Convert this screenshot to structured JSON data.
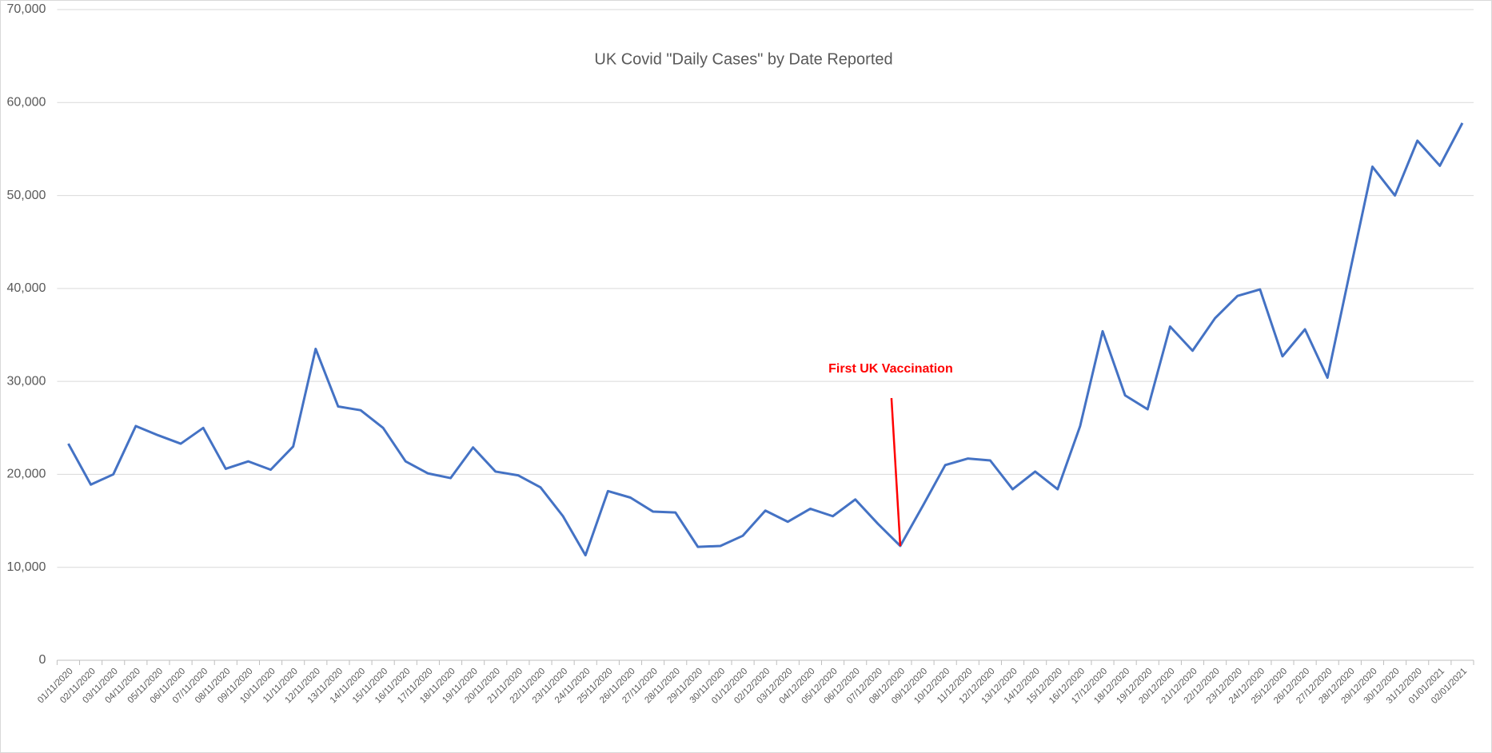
{
  "chart_data": {
    "type": "line",
    "title": "UK Covid \"Daily Cases\" by Date Reported",
    "categories": [
      "01/11/2020",
      "02/11/2020",
      "03/11/2020",
      "04/11/2020",
      "05/11/2020",
      "06/11/2020",
      "07/11/2020",
      "08/11/2020",
      "09/11/2020",
      "10/11/2020",
      "11/11/2020",
      "12/11/2020",
      "13/11/2020",
      "14/11/2020",
      "15/11/2020",
      "16/11/2020",
      "17/11/2020",
      "18/11/2020",
      "19/11/2020",
      "20/11/2020",
      "21/11/2020",
      "22/11/2020",
      "23/11/2020",
      "24/11/2020",
      "25/11/2020",
      "26/11/2020",
      "27/11/2020",
      "28/11/2020",
      "29/11/2020",
      "30/11/2020",
      "01/12/2020",
      "02/12/2020",
      "03/12/2020",
      "04/12/2020",
      "05/12/2020",
      "06/12/2020",
      "07/12/2020",
      "08/12/2020",
      "09/12/2020",
      "10/12/2020",
      "11/12/2020",
      "12/12/2020",
      "13/12/2020",
      "14/12/2020",
      "15/12/2020",
      "16/12/2020",
      "17/12/2020",
      "18/12/2020",
      "19/12/2020",
      "20/12/2020",
      "21/12/2020",
      "22/12/2020",
      "23/12/2020",
      "24/12/2020",
      "25/12/2020",
      "26/12/2020",
      "27/12/2020",
      "28/12/2020",
      "29/12/2020",
      "30/12/2020",
      "31/12/2020",
      "01/01/2021",
      "02/01/2021"
    ],
    "series": [
      {
        "color": "#4472c4",
        "values": [
          23300,
          18900,
          20000,
          25200,
          24200,
          23300,
          25000,
          20600,
          21400,
          20500,
          23000,
          33500,
          27300,
          26900,
          25000,
          21400,
          20100,
          19600,
          22900,
          20300,
          19900,
          18600,
          15500,
          11300,
          18200,
          17500,
          16000,
          15900,
          12200,
          12300,
          13400,
          16100,
          14900,
          16300,
          15500,
          17300,
          14700,
          12300,
          16600,
          21000,
          21700,
          21500,
          18400,
          20300,
          18400,
          25200,
          35400,
          28500,
          27000,
          35900,
          33300,
          36800,
          39200,
          39900,
          32700,
          35600,
          30400,
          41800,
          53100,
          50000,
          55900,
          53200,
          57800
        ]
      }
    ],
    "ylim": [
      0,
      70000
    ],
    "yticks": [
      0,
      {
        "value": 10000,
        "label": "10,000"
      },
      {
        "value": 20000,
        "label": "20,000"
      },
      {
        "value": 30000,
        "label": "30,000"
      },
      {
        "value": 40000,
        "label": "40,000"
      },
      {
        "value": 50000,
        "label": "50,000"
      },
      {
        "value": 60000,
        "label": "60,000"
      },
      {
        "value": 70000,
        "label": "70,000"
      }
    ],
    "grid": true,
    "annotations": [
      {
        "text": "First UK Vaccination",
        "x": "08/12/2020",
        "color": "#ff0000"
      }
    ]
  }
}
